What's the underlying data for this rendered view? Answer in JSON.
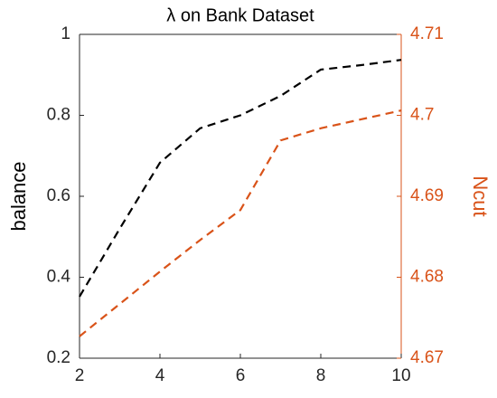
{
  "chart_data": {
    "type": "line",
    "title": "λ on Bank Dataset",
    "x": [
      2,
      3,
      4,
      5,
      6,
      7,
      8,
      9,
      10
    ],
    "xlim": [
      2,
      10
    ],
    "xticks": [
      2,
      4,
      6,
      8,
      10
    ],
    "ylabel": "balance",
    "ylim": [
      0.2,
      1
    ],
    "yticks": [
      0.2,
      0.4,
      0.6,
      0.8,
      1
    ],
    "y2label": "Ncut",
    "y2lim": [
      4.67,
      4.71
    ],
    "y2ticks": [
      4.67,
      4.68,
      4.69,
      4.7,
      4.71
    ],
    "y2color": "#d95319",
    "series": [
      {
        "color": "#000000",
        "values": [
          0.352,
          0.52,
          0.683,
          0.768,
          0.8,
          0.848,
          0.913,
          0.924,
          0.937
        ]
      },
      {
        "color": "#d95319",
        "axis": "y2",
        "values": [
          4.6727,
          4.6767,
          4.6807,
          4.6846,
          4.6883,
          4.6969,
          4.6984,
          4.6995,
          4.7006
        ]
      }
    ]
  }
}
